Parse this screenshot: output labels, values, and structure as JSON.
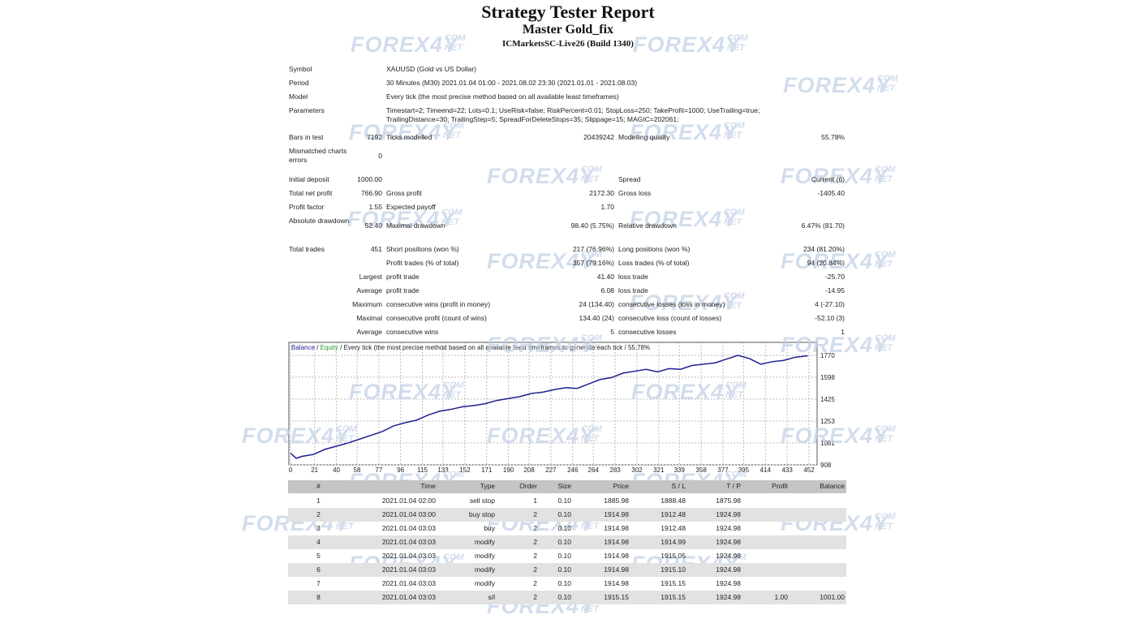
{
  "header": {
    "title": "Strategy Tester Report",
    "subtitle": "Master Gold_fix",
    "server": "ICMarketsSC-Live26 (Build 1340)"
  },
  "watermark": {
    "main": "FOREX4Y",
    "top": "COM",
    "bottom": "NET"
  },
  "summary": [
    {
      "l1": "Symbol",
      "wide": "XAUUSD (Gold vs US Dollar)"
    },
    {
      "l1": "Period",
      "wide": "30 Minutes (M30) 2021.01.04 01:00 - 2021.08.02 23:30 (2021.01.01 - 2021.08.03)"
    },
    {
      "l1": "Model",
      "wide": "Every tick (the most precise method based on all available least timeframes)"
    },
    {
      "l1": "Parameters",
      "wide": "Timestart=2; Timeend=22; Lots=0.1; UseRisk=false; RiskPercent=0.01; StopLoss=250; TakeProfit=1000; UseTrailing=true; TrailingDistance=30; TrailingStep=5; SpreadForDeleteStops=35; Slippage=15; MAGIC=202061;"
    },
    {
      "l1": "Bars in test",
      "v1": "7192",
      "l2": "Ticks modelled",
      "v2": "20439242",
      "l3": "Modelling quality",
      "v3": "55.78%"
    },
    {
      "l1": "Mismatched charts errors",
      "v1": "0"
    },
    {
      "l1": "Initial deposit",
      "v1": "1000.00",
      "l3": "Spread",
      "v3": "Current (6)"
    },
    {
      "l1": "Total net profit",
      "v1": "766.90",
      "l2": "Gross profit",
      "v2": "2172.30",
      "l3": "Gross loss",
      "v3": "-1405.40"
    },
    {
      "l1": "Profit factor",
      "v1": "1.55",
      "l2": "Expected payoff",
      "v2": "1.70"
    },
    {
      "l1": "Absolute drawdown",
      "v1": "52.40",
      "l2": "Maximal drawdown",
      "v2": "98.40 (5.75%)",
      "l3": "Relative drawdown",
      "v3": "6.47% (81.70)"
    },
    {
      "l1": "Total trades",
      "v1": "451",
      "l2": "Short positions (won %)",
      "v2": "217 (76.96%)",
      "l3": "Long positions (won %)",
      "v3": "234 (81.20%)"
    },
    {
      "l2": "Profit trades (% of total)",
      "v2": "357 (79.16%)",
      "l3": "Loss trades (% of total)",
      "v3": "94 (20.84%)"
    },
    {
      "v1": "Largest",
      "l2": "profit trade",
      "v2": "41.40",
      "l3": "loss trade",
      "v3": "-25.70"
    },
    {
      "v1": "Average",
      "l2": "profit trade",
      "v2": "6.08",
      "l3": "loss trade",
      "v3": "-14.95"
    },
    {
      "v1": "Maximum",
      "l2": "consecutive wins (profit in money)",
      "v2": "24 (134.40)",
      "l3": "consecutive losses (loss in money)",
      "v3": "4 (-27.10)"
    },
    {
      "v1": "Maximal",
      "l2": "consecutive profit (count of wins)",
      "v2": "134.40 (24)",
      "l3": "consecutive loss (count of losses)",
      "v3": "-52.10 (3)"
    },
    {
      "v1": "Average",
      "l2": "consecutive wins",
      "v2": "5",
      "l3": "consecutive losses",
      "v3": "1"
    }
  ],
  "chart": {
    "type": "line",
    "separator": "/",
    "caption": "Every tick (the most precise method based on all available least timeframes to generate each tick / 55.78%",
    "series": [
      {
        "name": "Balance",
        "color": "#1f1f8f",
        "x": [
          0,
          5,
          10,
          20,
          30,
          40,
          50,
          60,
          70,
          80,
          90,
          100,
          110,
          120,
          130,
          140,
          150,
          160,
          170,
          180,
          190,
          200,
          210,
          220,
          230,
          240,
          250,
          260,
          270,
          280,
          290,
          300,
          310,
          320,
          330,
          340,
          350,
          360,
          370,
          380,
          390,
          400,
          410,
          420,
          430,
          440,
          451
        ],
        "values": [
          1000,
          960,
          975,
          990,
          1030,
          1055,
          1080,
          1110,
          1140,
          1170,
          1215,
          1240,
          1260,
          1300,
          1330,
          1345,
          1365,
          1375,
          1390,
          1415,
          1430,
          1445,
          1470,
          1480,
          1500,
          1515,
          1510,
          1545,
          1580,
          1595,
          1630,
          1645,
          1660,
          1640,
          1665,
          1660,
          1690,
          1700,
          1710,
          1740,
          1770,
          1745,
          1700,
          1720,
          1730,
          1755,
          1766.9
        ]
      },
      {
        "name": "Equity",
        "color": "#2ca02c"
      }
    ],
    "xlim": [
      0,
      452
    ],
    "xticks": [
      0,
      21,
      40,
      58,
      77,
      96,
      115,
      133,
      152,
      171,
      190,
      208,
      227,
      246,
      264,
      283,
      302,
      321,
      339,
      358,
      377,
      395,
      414,
      433,
      452
    ],
    "ylim": [
      908,
      1872
    ],
    "yticks": [
      908,
      1081,
      1253,
      1425,
      1598,
      1770
    ],
    "grid": true
  },
  "trades": {
    "columns": [
      "#",
      "Time",
      "Type",
      "Order",
      "Size",
      "Price",
      "S / L",
      "T / P",
      "Profit",
      "Balance"
    ],
    "rows": [
      [
        "1",
        "2021.01.04 02:00",
        "sell stop",
        "1",
        "0.10",
        "1885.98",
        "1888.48",
        "1875.98"
      ],
      [
        "2",
        "2021.01.04 03:00",
        "buy stop",
        "2",
        "0.10",
        "1914.98",
        "1912.48",
        "1924.98"
      ],
      [
        "3",
        "2021.01.04 03:03",
        "buy",
        "2",
        "0.10",
        "1914.98",
        "1912.48",
        "1924.98"
      ],
      [
        "4",
        "2021.01.04 03:03",
        "modify",
        "2",
        "0.10",
        "1914.98",
        "1914.99",
        "1924.98"
      ],
      [
        "5",
        "2021.01.04 03:03",
        "modify",
        "2",
        "0.10",
        "1914.98",
        "1915.05",
        "1924.98"
      ],
      [
        "6",
        "2021.01.04 03:03",
        "modify",
        "2",
        "0.10",
        "1914.98",
        "1915.10",
        "1924.98"
      ],
      [
        "7",
        "2021.01.04 03:03",
        "modify",
        "2",
        "0.10",
        "1914.98",
        "1915.15",
        "1924.98"
      ],
      [
        "8",
        "2021.01.04 03:03",
        "s/l",
        "2",
        "0.10",
        "1915.15",
        "1915.15",
        "1924.98",
        "1.00",
        "1001.00"
      ]
    ]
  }
}
